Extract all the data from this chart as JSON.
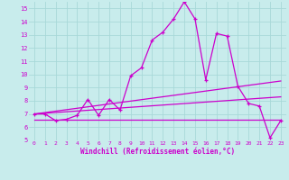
{
  "background_color": "#c8ecec",
  "grid_color": "#a8d8d8",
  "line_color": "#cc00cc",
  "xlabel": "Windchill (Refroidissement éolien,°C)",
  "ylim": [
    5,
    15.5
  ],
  "xlim": [
    -0.5,
    23.5
  ],
  "yticks": [
    5,
    6,
    7,
    8,
    9,
    10,
    11,
    12,
    13,
    14,
    15
  ],
  "xticks": [
    0,
    1,
    2,
    3,
    4,
    5,
    6,
    7,
    8,
    9,
    10,
    11,
    12,
    13,
    14,
    15,
    16,
    17,
    18,
    19,
    20,
    21,
    22,
    23
  ],
  "series1_x": [
    0,
    1,
    2,
    3,
    4,
    5,
    6,
    7,
    8,
    9,
    10,
    11,
    12,
    13,
    14,
    15,
    16,
    17,
    18,
    19,
    20,
    21,
    22,
    23
  ],
  "series1_y": [
    7.0,
    7.0,
    6.5,
    6.6,
    6.9,
    8.1,
    6.9,
    8.1,
    7.3,
    9.9,
    10.5,
    12.6,
    13.2,
    14.2,
    15.5,
    14.2,
    9.6,
    13.1,
    12.9,
    9.1,
    7.8,
    7.6,
    5.2,
    6.5
  ],
  "series2_x": [
    0,
    23
  ],
  "series2_y": [
    7.0,
    9.5
  ],
  "series3_x": [
    0,
    23
  ],
  "series3_y": [
    7.0,
    8.3
  ],
  "series4_x": [
    0,
    23
  ],
  "series4_y": [
    6.6,
    6.6
  ]
}
